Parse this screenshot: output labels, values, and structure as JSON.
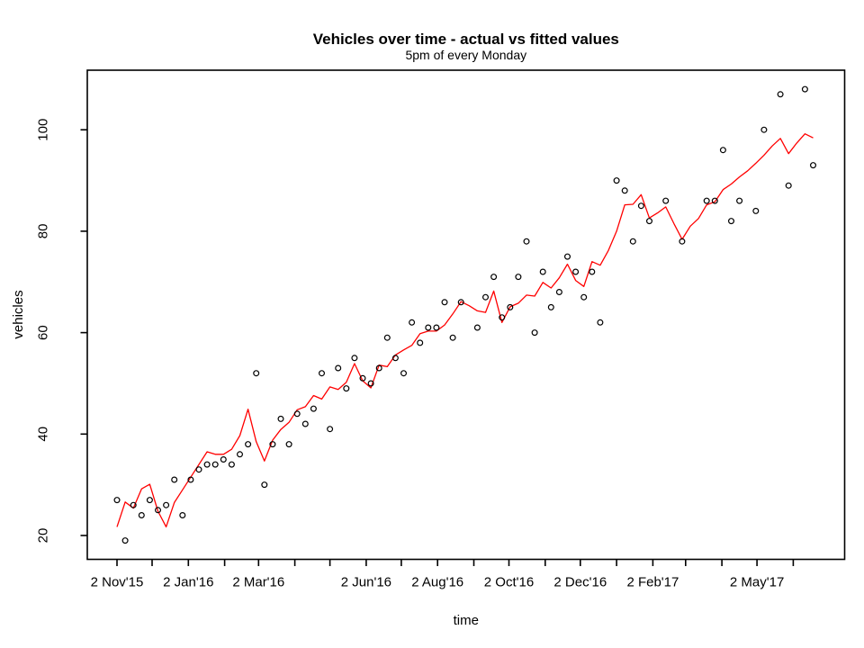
{
  "figure": {
    "background": "#ffffff",
    "box_color": "#000000",
    "accent_color": "#ff0000"
  },
  "chart_data": {
    "type": "line",
    "title": "Vehicles over time - actual vs fitted values",
    "subtitle": "5pm of every Monday",
    "xlabel": "time",
    "ylabel": "vehicles",
    "x_unit": "weekly observations (every Monday), starting 2 Nov'15",
    "x_step_days": 7,
    "x_tick_days": [
      0,
      30,
      61,
      92,
      121,
      152,
      182,
      213,
      243,
      274,
      305,
      335,
      366,
      396,
      427,
      458,
      486,
      517,
      547,
      578
    ],
    "x_tick_labels": [
      "2 Nov'15",
      "",
      "2 Jan'16",
      "",
      "2 Mar'16",
      "",
      "",
      "2 Jun'16",
      "",
      "2 Aug'16",
      "",
      "2 Oct'16",
      "",
      "2 Dec'16",
      "",
      "2 Feb'17",
      "",
      "",
      "2 May'17",
      ""
    ],
    "y_ticks": [
      20,
      40,
      60,
      80,
      100
    ],
    "ylim": [
      15.5,
      112
    ],
    "grid": false,
    "legend": "none",
    "series": [
      {
        "name": "actual",
        "style": "open-circle",
        "color": "#000000",
        "values": [
          27,
          19,
          26,
          24,
          27,
          25,
          26,
          31,
          24,
          31,
          33,
          34,
          34,
          35,
          34,
          36,
          38,
          52,
          30,
          38,
          43,
          38,
          44,
          42,
          45,
          52,
          41,
          53,
          49,
          55,
          51,
          50,
          53,
          59,
          55,
          52,
          62,
          58,
          61,
          61,
          66,
          59,
          66,
          null,
          61,
          67,
          71,
          63,
          65,
          71,
          78,
          60,
          72,
          65,
          68,
          75,
          72,
          67,
          72,
          62,
          null,
          90,
          88,
          78,
          85,
          82,
          null,
          86,
          null,
          78,
          null,
          null,
          86,
          86,
          96,
          82,
          86,
          null,
          84,
          100,
          null,
          107,
          89,
          null,
          108,
          93
        ]
      },
      {
        "name": "fitted",
        "style": "line",
        "color": "#ff0000",
        "values": [
          21.7,
          26.6,
          25.4,
          29.2,
          30.1,
          24.8,
          21.7,
          26.5,
          29,
          31.5,
          34,
          36.5,
          36,
          36,
          37,
          39.7,
          44.9,
          38.5,
          34.7,
          38.8,
          40.9,
          42.3,
          44.8,
          45.4,
          47.6,
          46.9,
          49.3,
          48.8,
          50.2,
          53.9,
          50.5,
          49.1,
          53.6,
          53.3,
          55.6,
          56.6,
          57.5,
          59.8,
          60.3,
          60.3,
          61.5,
          63.7,
          66.1,
          65.3,
          64.3,
          64,
          68.2,
          62,
          65.1,
          65.8,
          67.4,
          67.2,
          69.9,
          68.8,
          70.8,
          73.5,
          70.3,
          69.1,
          74,
          73.3,
          76.2,
          80,
          85.2,
          85.3,
          87.2,
          82.6,
          83.6,
          84.8,
          81.5,
          78.4,
          81,
          82.5,
          85.2,
          85.8,
          88.2,
          89.3,
          90.7,
          91.9,
          93.4,
          95,
          96.8,
          98.3,
          95.3,
          97.4,
          99.2,
          98.4
        ]
      }
    ]
  }
}
